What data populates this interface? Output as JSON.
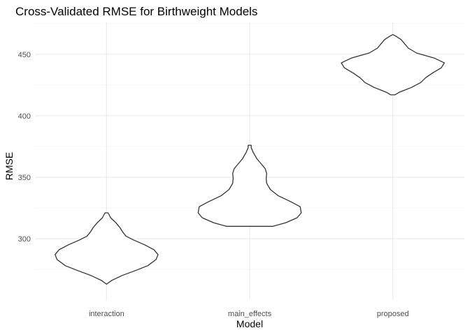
{
  "chart_data": {
    "type": "violin",
    "title": "Cross-Validated RMSE for Birthweight Models",
    "xlabel": "Model",
    "ylabel": "RMSE",
    "categories": [
      "interaction",
      "main_effects",
      "proposed"
    ],
    "ylim": [
      250,
      476
    ],
    "yticks": [
      300,
      350,
      400,
      450
    ],
    "grid": true,
    "legend": "none",
    "stroke_color": "#333333",
    "fill_color": "#ffffff",
    "series": [
      {
        "category": "interaction",
        "min": 263,
        "max": 321,
        "profile": [
          [
            263,
            0.0
          ],
          [
            266,
            0.1
          ],
          [
            270,
            0.3
          ],
          [
            274,
            0.56
          ],
          [
            278,
            0.8
          ],
          [
            283,
            0.96
          ],
          [
            287,
            1.0
          ],
          [
            291,
            0.92
          ],
          [
            295,
            0.74
          ],
          [
            299,
            0.52
          ],
          [
            302,
            0.38
          ],
          [
            305,
            0.32
          ],
          [
            309,
            0.26
          ],
          [
            313,
            0.18
          ],
          [
            317,
            0.08
          ],
          [
            321,
            0.03
          ]
        ]
      },
      {
        "category": "main_effects",
        "min": 310,
        "max": 376,
        "profile": [
          [
            310,
            0.45
          ],
          [
            313,
            0.7
          ],
          [
            317,
            0.92
          ],
          [
            321,
            1.0
          ],
          [
            326,
            0.98
          ],
          [
            330,
            0.8
          ],
          [
            335,
            0.55
          ],
          [
            340,
            0.4
          ],
          [
            345,
            0.33
          ],
          [
            349,
            0.32
          ],
          [
            353,
            0.33
          ],
          [
            357,
            0.3
          ],
          [
            361,
            0.22
          ],
          [
            365,
            0.14
          ],
          [
            370,
            0.07
          ],
          [
            374,
            0.03
          ],
          [
            376,
            0.03
          ]
        ]
      },
      {
        "category": "proposed",
        "min": 417,
        "max": 466,
        "profile": [
          [
            417,
            0.04
          ],
          [
            419,
            0.12
          ],
          [
            423,
            0.36
          ],
          [
            427,
            0.54
          ],
          [
            431,
            0.64
          ],
          [
            435,
            0.78
          ],
          [
            439,
            0.94
          ],
          [
            443,
            1.0
          ],
          [
            447,
            0.8
          ],
          [
            451,
            0.46
          ],
          [
            455,
            0.3
          ],
          [
            459,
            0.22
          ],
          [
            462,
            0.16
          ],
          [
            465,
            0.05
          ],
          [
            466,
            0.0
          ]
        ]
      }
    ]
  }
}
